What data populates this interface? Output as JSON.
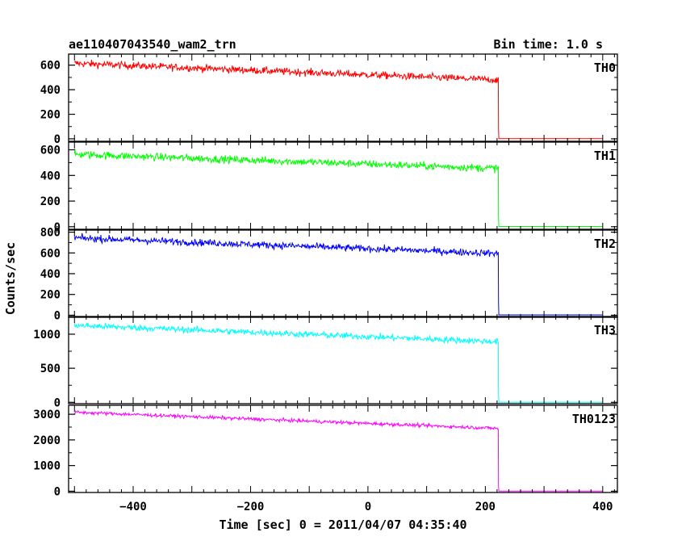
{
  "chart_data": {
    "type": "line",
    "title": "ae110407043540_wam2_trn",
    "bin_time_label": "Bin time: 1.0 s",
    "xlabel": "Time [sec] 0 = 2011/04/07 04:35:40",
    "ylabel": "Counts/sec",
    "xlim": [
      -510,
      425
    ],
    "x_ticks": [
      -400,
      -200,
      0,
      200,
      400
    ],
    "x_tick_labels": [
      "−400",
      "−200",
      "0",
      "200",
      "400"
    ],
    "grid": false,
    "panels": [
      {
        "name": "TH0",
        "color": "#ff0000",
        "ylim": [
          -20,
          690
        ],
        "yticks": [
          0,
          200,
          400,
          600
        ],
        "ytick_labels": [
          "0",
          "200",
          "400",
          "600"
        ],
        "x_start": -500,
        "x_drop": 222,
        "x_end": 400,
        "level_start": 615,
        "level_end": 480,
        "noise": 25,
        "after_level": 2
      },
      {
        "name": "TH1",
        "color": "#00ff00",
        "ylim": [
          -20,
          660
        ],
        "yticks": [
          0,
          200,
          400,
          600
        ],
        "ytick_labels": [
          "0",
          "200",
          "400",
          "600"
        ],
        "x_start": -500,
        "x_drop": 222,
        "x_end": 400,
        "level_start": 565,
        "level_end": 455,
        "noise": 25,
        "after_level": 2
      },
      {
        "name": "TH2",
        "color": "#0000ff",
        "ylim": [
          -20,
          820
        ],
        "yticks": [
          0,
          200,
          400,
          600,
          800
        ],
        "ytick_labels": [
          "0",
          "200",
          "400",
          "600",
          "800"
        ],
        "x_start": -500,
        "x_drop": 222,
        "x_end": 400,
        "level_start": 745,
        "level_end": 595,
        "noise": 28,
        "after_level": 3
      },
      {
        "name": "TH3",
        "color": "#00ffff",
        "ylim": [
          -20,
          1260
        ],
        "yticks": [
          0,
          500,
          1000
        ],
        "ytick_labels": [
          "0",
          "500",
          "1000"
        ],
        "x_start": -500,
        "x_drop": 222,
        "x_end": 400,
        "level_start": 1130,
        "level_end": 890,
        "noise": 40,
        "after_level": 3
      },
      {
        "name": "TH0123",
        "color": "#ff00ff",
        "ylim": [
          -50,
          3350
        ],
        "yticks": [
          0,
          1000,
          2000,
          3000
        ],
        "ytick_labels": [
          "0",
          "1000",
          "2000",
          "3000"
        ],
        "x_start": -500,
        "x_drop": 222,
        "x_end": 400,
        "level_start": 3080,
        "level_end": 2450,
        "noise": 55,
        "after_level": 5
      }
    ]
  }
}
